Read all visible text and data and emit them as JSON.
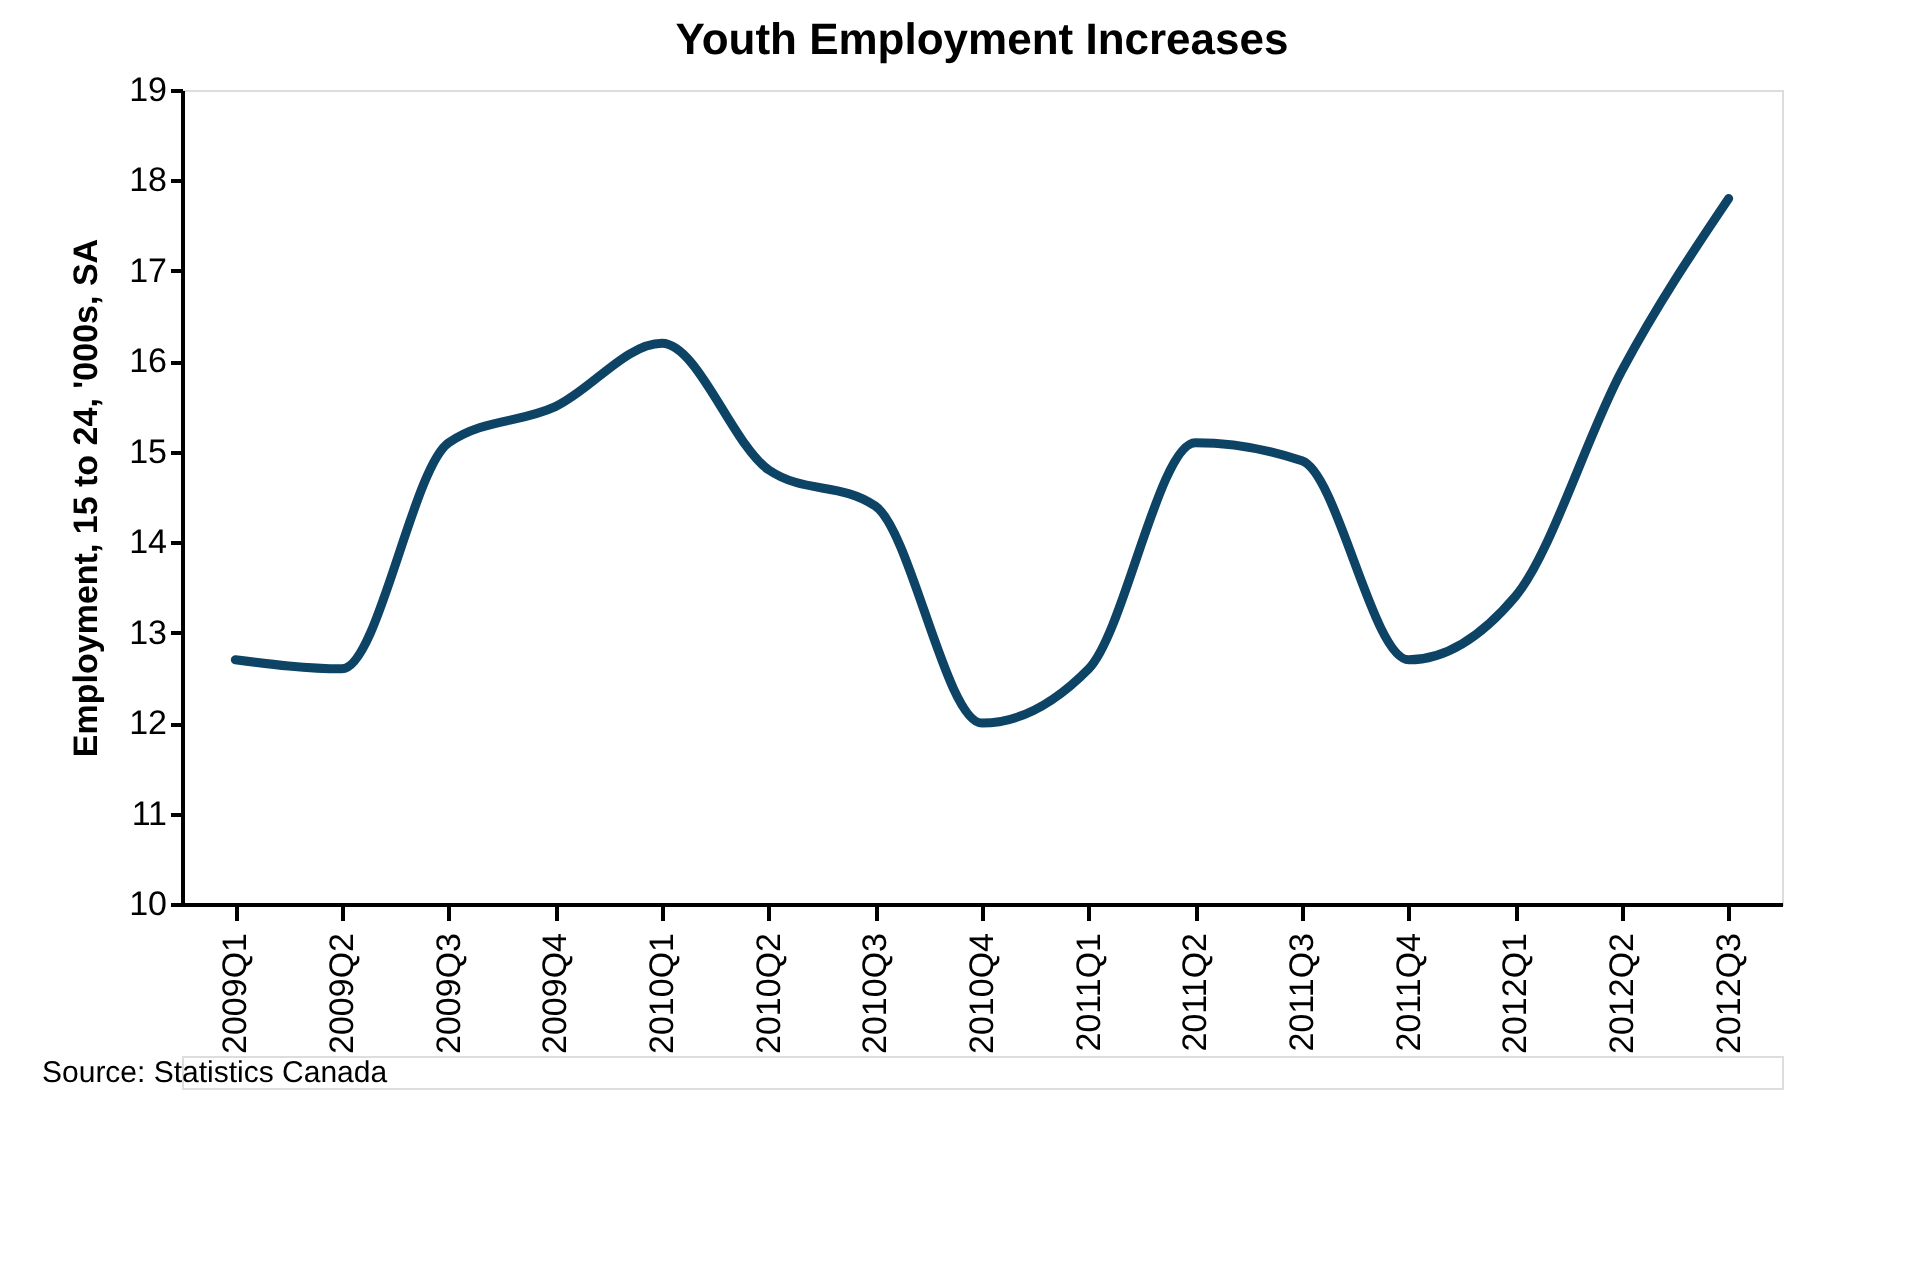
{
  "chart_data": {
    "type": "line",
    "title": "Youth Employment Increases",
    "ylabel": "Employment, 15 to 24, '000s, SA",
    "categories": [
      "2009Q1",
      "2009Q2",
      "2009Q3",
      "2009Q4",
      "2010Q1",
      "2010Q2",
      "2010Q3",
      "2010Q4",
      "2011Q1",
      "2011Q2",
      "2011Q3",
      "2011Q4",
      "2012Q1",
      "2012Q2",
      "2012Q3"
    ],
    "series": [
      {
        "color": "#0d4466",
        "values": [
          12.7,
          12.6,
          15.1,
          15.5,
          16.2,
          14.8,
          14.4,
          12.0,
          12.6,
          15.1,
          14.9,
          12.7,
          13.4,
          15.9,
          17.8
        ]
      }
    ],
    "ylim": [
      10,
      19
    ],
    "yticks": [
      10,
      11,
      12,
      13,
      14,
      15,
      16,
      17,
      18,
      19
    ],
    "grid": false,
    "legend": false,
    "marker": "none",
    "line_style": "solid",
    "annotations": [
      "Source: Statistics Canada"
    ]
  }
}
